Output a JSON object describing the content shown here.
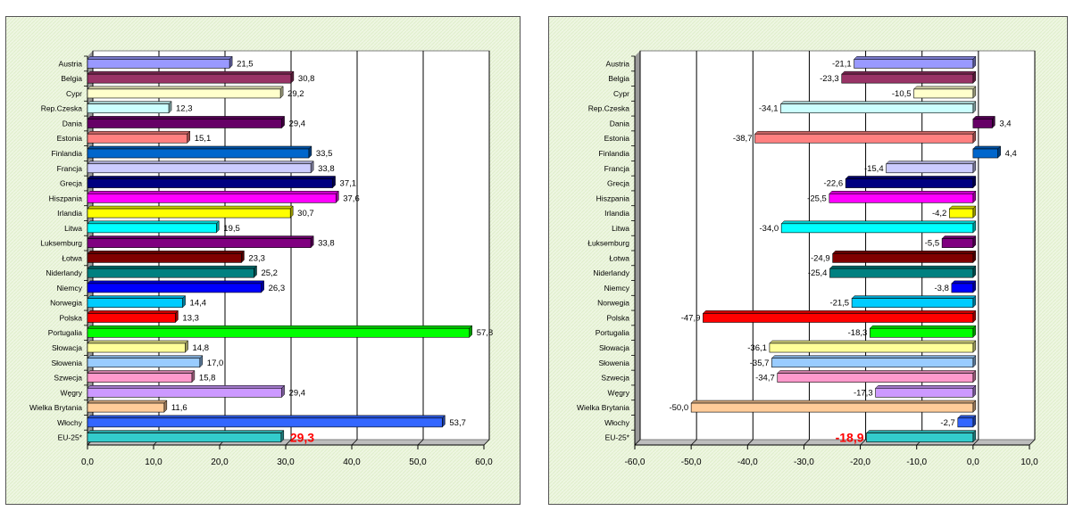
{
  "colors": {
    "panel_bg": "#eef6e2",
    "plot_bg": "#ffffff",
    "gridline": "#000000",
    "highlight_label": "#ff0000",
    "bars": [
      "#9999ff",
      "#993366",
      "#ffffcc",
      "#ccffff",
      "#660066",
      "#ff8080",
      "#0066cc",
      "#ccccff",
      "#000080",
      "#ff00ff",
      "#ffff00",
      "#00ffff",
      "#800080",
      "#800000",
      "#008080",
      "#0000ff",
      "#00ccff",
      "#ff0000",
      "#00ff00",
      "#ffff99",
      "#99ccff",
      "#ff99cc",
      "#cc99ff",
      "#ffcc99",
      "#3366ff",
      "#33cccc"
    ]
  },
  "chart_data": [
    {
      "type": "bar",
      "orientation": "horizontal",
      "title": "",
      "xlabel": "",
      "ylabel": "",
      "xlim": [
        0,
        60
      ],
      "x_ticks": [
        "0,0",
        "10,0",
        "20,0",
        "30,0",
        "40,0",
        "50,0",
        "60,0"
      ],
      "grid": true,
      "legend": "none",
      "categories": [
        "Austria",
        "Belgia",
        "Cypr",
        "Rep.Czeska",
        "Dania",
        "Estonia",
        "Finlandia",
        "Francja",
        "Grecja",
        "Hiszpania",
        "Irlandia",
        "Litwa",
        "Luksemburg",
        "Łotwa",
        "Niderlandy",
        "Niemcy",
        "Norwegia",
        "Polska",
        "Portugalia",
        "Słowacja",
        "Słowenia",
        "Szwecja",
        "Węgry",
        "Wielka Brytania",
        "Włochy",
        "EU-25*"
      ],
      "values": [
        21.5,
        30.8,
        29.2,
        12.3,
        29.4,
        15.1,
        33.5,
        33.8,
        37.1,
        37.6,
        30.7,
        19.5,
        33.8,
        23.3,
        25.2,
        26.3,
        14.4,
        13.3,
        57.8,
        14.8,
        17.0,
        15.8,
        29.4,
        11.6,
        53.7,
        29.3
      ],
      "labels": [
        "21,5",
        "30,8",
        "29,2",
        "12,3",
        "29,4",
        "15,1",
        "33,5",
        "33,8",
        "37,1",
        "37,6",
        "30,7",
        "19,5",
        "33,8",
        "23,3",
        "25,2",
        "26,3",
        "14,4",
        "13,3",
        "57,8",
        "14,8",
        "17,0",
        "15,8",
        "29,4",
        "11,6",
        "53,7",
        "29,3"
      ],
      "highlight_index": 25
    },
    {
      "type": "bar",
      "orientation": "horizontal",
      "title": "",
      "xlabel": "",
      "ylabel": "",
      "xlim": [
        -60,
        10
      ],
      "x_ticks": [
        "-60,0",
        "-50,0",
        "-40,0",
        "-30,0",
        "-20,0",
        "-10,0",
        "0,0",
        "10,0"
      ],
      "grid": true,
      "legend": "none",
      "categories": [
        "Austria",
        "Belgia",
        "Cypr",
        "Rep.Czeska",
        "Dania",
        "Estonia",
        "Finlandia",
        "Francja",
        "Grecja",
        "Hiszpania",
        "Irlandia",
        "Litwa",
        "Łuksemburg",
        "Łotwa",
        "Niderlandy",
        "Niemcy",
        "Norwegia",
        "Polska",
        "Portugalia",
        "Słowacja",
        "Słowenia",
        "Szwecja",
        "Węgry",
        "Wielka Brytania",
        "Włochy",
        "EU-25*"
      ],
      "values": [
        -21.1,
        -23.3,
        -10.5,
        -34.1,
        3.4,
        -38.7,
        4.4,
        -15.4,
        -22.6,
        -25.5,
        -4.2,
        -34.0,
        -5.5,
        -24.9,
        -25.4,
        -3.8,
        -21.5,
        -47.9,
        -18.3,
        -36.1,
        -35.7,
        -34.7,
        -17.3,
        -50.0,
        -2.7,
        -18.9
      ],
      "labels": [
        "-21,1",
        "-23,3",
        "-10,5",
        "-34,1",
        "3,4",
        "-38,7",
        "4,4",
        "-15,4",
        "-22,6",
        "-25,5",
        "-4,2",
        "-34,0",
        "-5,5",
        "-24,9",
        "-25,4",
        "-3,8",
        "-21,5",
        "-47,9",
        "-18,3",
        "-36,1",
        "-35,7",
        "-34,7",
        "-17,3",
        "-50,0",
        "-2,7",
        "-18,9"
      ],
      "highlight_index": 25
    }
  ]
}
